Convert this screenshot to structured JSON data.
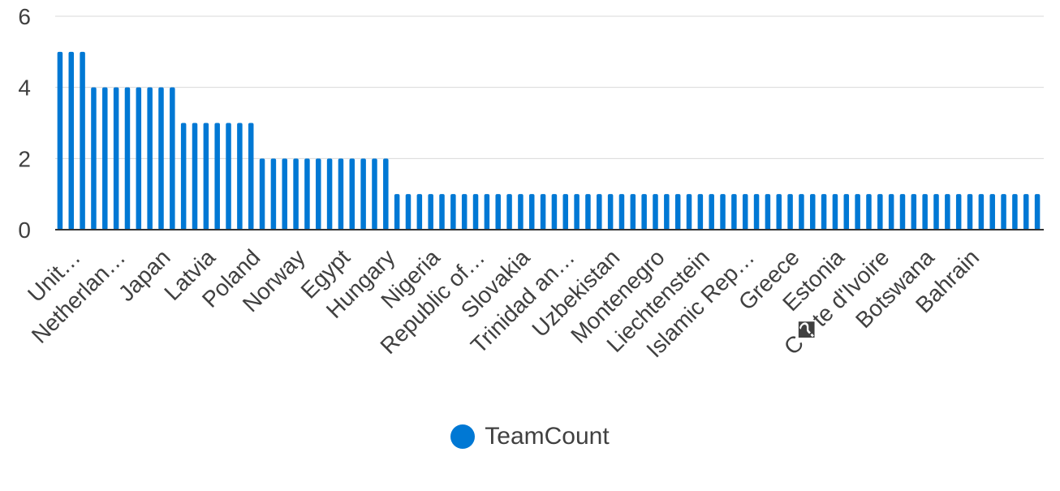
{
  "chart_data": {
    "type": "bar",
    "title": "",
    "xlabel": "",
    "ylabel": "",
    "ylim": [
      0,
      6
    ],
    "y_ticks": [
      "0",
      "2",
      "4",
      "6"
    ],
    "grid": true,
    "legend_position": "bottom-center",
    "visible_category_labels": [
      "Unit…",
      "Netherlan…",
      "Japan",
      "Latvia",
      "Poland",
      "Norway",
      "Egypt",
      "Hungary",
      "Nigeria",
      "Republic of…",
      "Slovakia",
      "Trinidad an…",
      "Uzbekistan",
      "Montenegro",
      "Liechtenstein",
      "Islamic Rep…",
      "Greece",
      "Estonia",
      "C�te d'Ivoire",
      "Botswana",
      "Bahrain"
    ],
    "series": [
      {
        "name": "TeamCount",
        "color": "#0078D4",
        "values": [
          5,
          5,
          5,
          4,
          4,
          4,
          4,
          4,
          4,
          4,
          4,
          3,
          3,
          3,
          3,
          3,
          3,
          3,
          2,
          2,
          2,
          2,
          2,
          2,
          2,
          2,
          2,
          2,
          2,
          2,
          1,
          1,
          1,
          1,
          1,
          1,
          1,
          1,
          1,
          1,
          1,
          1,
          1,
          1,
          1,
          1,
          1,
          1,
          1,
          1,
          1,
          1,
          1,
          1,
          1,
          1,
          1,
          1,
          1,
          1,
          1,
          1,
          1,
          1,
          1,
          1,
          1,
          1,
          1,
          1,
          1,
          1,
          1,
          1,
          1,
          1,
          1,
          1,
          1,
          1,
          1,
          1,
          1,
          1,
          1,
          1,
          1,
          1
        ]
      }
    ]
  }
}
